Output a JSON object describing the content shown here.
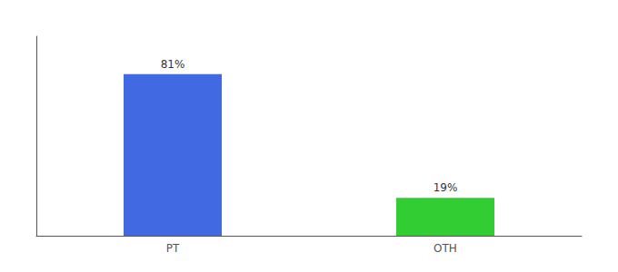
{
  "chart_data": {
    "type": "bar",
    "categories": [
      "PT",
      "OTH"
    ],
    "values": [
      81,
      19
    ],
    "value_labels": [
      "81%",
      "19%"
    ],
    "colors": [
      "#4169e1",
      "#32cd32"
    ],
    "data_labels": true,
    "ylim": [
      0,
      100
    ],
    "tick_labels": "x",
    "grid": false
  }
}
